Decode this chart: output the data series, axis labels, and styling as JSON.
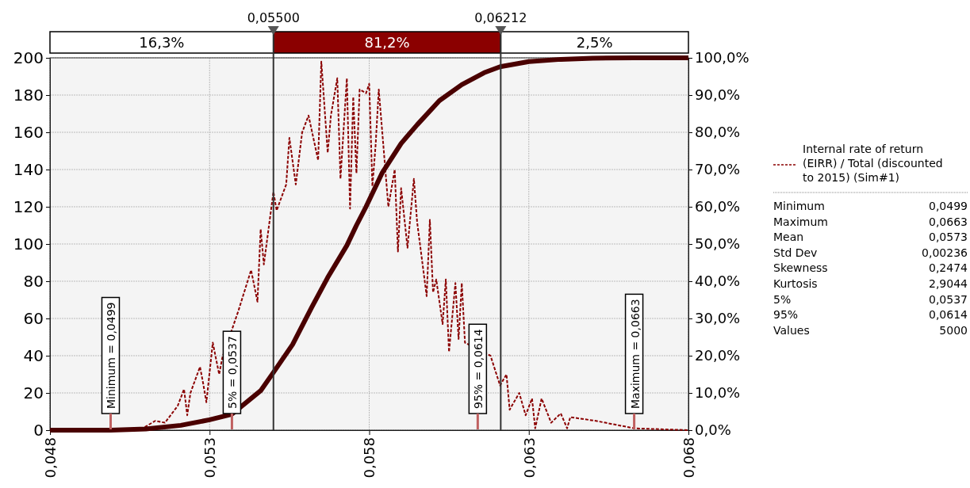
{
  "chart_data": {
    "type": "line",
    "xlim": [
      0.048,
      0.068
    ],
    "xticks": [
      {
        "value": 0.048,
        "label": "0,048"
      },
      {
        "value": 0.053,
        "label": "0,053"
      },
      {
        "value": 0.058,
        "label": "0,058"
      },
      {
        "value": 0.063,
        "label": "0,063"
      },
      {
        "value": 0.068,
        "label": "0,068"
      }
    ],
    "ylim": [
      0,
      200
    ],
    "yticks": [
      0,
      20,
      40,
      60,
      80,
      100,
      120,
      140,
      160,
      180,
      200
    ],
    "y2lim": [
      0,
      100
    ],
    "y2ticks": [
      {
        "value": 0,
        "label": "0,0%"
      },
      {
        "value": 10,
        "label": "10,0%"
      },
      {
        "value": 20,
        "label": "20,0%"
      },
      {
        "value": 30,
        "label": "30,0%"
      },
      {
        "value": 40,
        "label": "40,0%"
      },
      {
        "value": 50,
        "label": "50,0%"
      },
      {
        "value": 60,
        "label": "60,0%"
      },
      {
        "value": 70,
        "label": "70,0%"
      },
      {
        "value": 80,
        "label": "80,0%"
      },
      {
        "value": 90,
        "label": "90,0%"
      },
      {
        "value": 100,
        "label": "100,0%"
      }
    ],
    "grid": true,
    "legend": "right",
    "marker": "none",
    "series": [
      {
        "name": "Internal rate of return (EIRR) / Total (discounted to 2015) (Sim#1)",
        "color": "#8b0000",
        "line_style": "dashed",
        "x": [
          0.048,
          0.0499,
          0.0509,
          0.0513,
          0.0516,
          0.052,
          0.0522,
          0.0523,
          0.0524,
          0.0527,
          0.0528,
          0.0529,
          0.0531,
          0.0533,
          0.0534,
          0.0539,
          0.0543,
          0.0545,
          0.0546,
          0.0547,
          0.055,
          0.0551,
          0.0554,
          0.0555,
          0.0557,
          0.0559,
          0.0561,
          0.0564,
          0.0565,
          0.0567,
          0.0568,
          0.057,
          0.0571,
          0.0573,
          0.0574,
          0.0575,
          0.0576,
          0.0577,
          0.0579,
          0.058,
          0.0581,
          0.0582,
          0.0583,
          0.0586,
          0.0588,
          0.0589,
          0.059,
          0.0592,
          0.0594,
          0.0595,
          0.0598,
          0.0599,
          0.06,
          0.0601,
          0.0603,
          0.0604,
          0.0605,
          0.0607,
          0.0608,
          0.0609,
          0.061,
          0.0618,
          0.0621,
          0.0623,
          0.0624,
          0.0627,
          0.0629,
          0.0631,
          0.0632,
          0.0634,
          0.0637,
          0.064,
          0.0642,
          0.0643,
          0.0651,
          0.0654,
          0.0663,
          0.068
        ],
        "values": [
          0,
          0,
          1,
          5,
          4,
          13,
          22,
          8,
          20,
          34,
          25,
          15,
          47,
          30,
          39,
          64,
          86,
          69,
          108,
          89,
          128,
          118,
          132,
          157,
          132,
          160,
          169,
          145,
          198,
          149,
          169,
          189,
          135,
          189,
          119,
          179,
          138,
          183,
          181,
          186,
          131,
          153,
          183,
          120,
          140,
          96,
          130,
          98,
          135,
          112,
          72,
          113,
          74,
          81,
          57,
          81,
          42,
          79,
          49,
          79,
          47,
          40,
          24,
          30,
          11,
          20,
          8,
          17,
          1,
          17,
          4,
          9,
          1,
          7,
          5,
          4,
          1,
          0
        ]
      },
      {
        "color": "#4a0000",
        "line_style": "solid",
        "axis": "y2",
        "x": [
          0.048,
          0.0499,
          0.051,
          0.0521,
          0.053,
          0.0537,
          0.0546,
          0.055,
          0.0556,
          0.0562,
          0.0567,
          0.0573,
          0.0576,
          0.0579,
          0.0584,
          0.059,
          0.0595,
          0.0602,
          0.0609,
          0.0616,
          0.0621,
          0.063,
          0.064,
          0.065,
          0.0663,
          0.068
        ],
        "values": [
          0,
          0,
          0.3,
          1.3,
          2.8,
          4.3,
          10.6,
          15.5,
          23,
          33,
          41,
          49.6,
          55,
          60,
          69,
          77,
          82,
          88.5,
          92.8,
          96,
          97.6,
          99,
          99.6,
          99.9,
          100,
          100
        ]
      }
    ],
    "ref_lines": [
      {
        "axis": "x",
        "value": 0.055,
        "label": "0,05500",
        "color": "#333333",
        "line_style": "solid"
      },
      {
        "axis": "x",
        "value": 0.06212,
        "label": "0,06212",
        "color": "#333333",
        "line_style": "solid"
      },
      {
        "axis": "x",
        "value": 0.0499,
        "label": "Minimum = 0,0499",
        "color": "#c06060"
      },
      {
        "axis": "x",
        "value": 0.0537,
        "label": "5% = 0,0537",
        "color": "#c06060"
      },
      {
        "axis": "x",
        "value": 0.0614,
        "label": "95% = 0,0614",
        "color": "#c06060"
      },
      {
        "axis": "x",
        "value": 0.0663,
        "label": "Maximum = 0,0663",
        "color": "#c06060"
      }
    ],
    "annotations": [
      "16,3%",
      "81,2%",
      "2,5%",
      "Minimum",
      "0,0499",
      "Maximum",
      "0,0663",
      "Mean",
      "0,0573",
      "Std Dev",
      "0,00236",
      "Skewness",
      "0,2474",
      "Kurtosis",
      "2,9044",
      "5%",
      "0,0537",
      "95%",
      "0,0614",
      "Values",
      "5000"
    ]
  }
}
